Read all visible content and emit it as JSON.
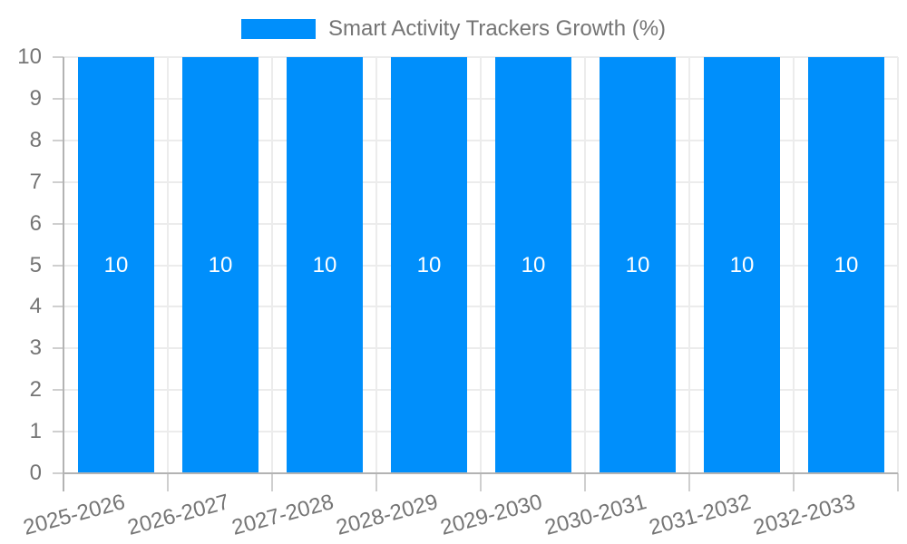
{
  "legend": {
    "series_label": "Smart Activity Trackers Growth (%)",
    "swatch_color": "#008FFB"
  },
  "chart_data": {
    "type": "bar",
    "title": "Smart Activity Trackers Growth (%)",
    "categories": [
      "2025-2026",
      "2026-2027",
      "2027-2028",
      "2028-2029",
      "2029-2030",
      "2030-2031",
      "2031-2032",
      "2032-2033"
    ],
    "values": [
      10,
      10,
      10,
      10,
      10,
      10,
      10,
      10
    ],
    "value_labels": [
      "10",
      "10",
      "10",
      "10",
      "10",
      "10",
      "10",
      "10"
    ],
    "xlabel": "",
    "ylabel": "",
    "ylim": [
      0,
      10
    ],
    "ytick_labels": [
      "0",
      "1",
      "2",
      "3",
      "4",
      "5",
      "6",
      "7",
      "8",
      "9",
      "10"
    ],
    "grid": "horizontal and vertical category boundaries",
    "legend_position": "top",
    "colors": {
      "bar": "#008FFB",
      "grid_line": "#ececec",
      "axis_line": "#b3b3b3",
      "tick_line": "#cfcfcf",
      "axis_text": "#757575",
      "value_label": "#ffffff",
      "background": "#ffffff"
    }
  }
}
